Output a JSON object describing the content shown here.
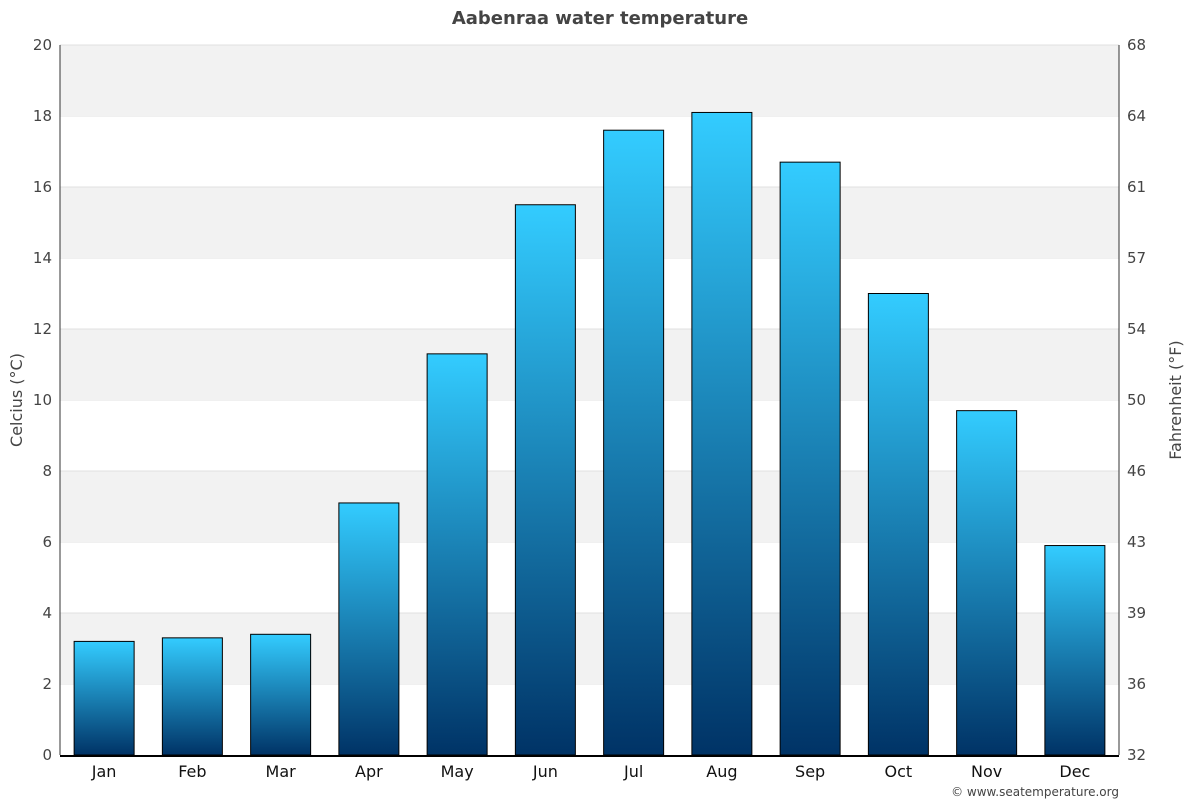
{
  "chart_data": {
    "type": "bar",
    "title": "Aabenraa water temperature",
    "ylabel": "Celcius (°C)",
    "ylabel_right": "Fahrenheit (°F)",
    "ylim": [
      0,
      20
    ],
    "yticks": [
      0,
      2,
      4,
      6,
      8,
      10,
      12,
      14,
      16,
      18,
      20
    ],
    "yticks_right": [
      "32",
      "36",
      "39",
      "43",
      "46",
      "50",
      "54",
      "57",
      "61",
      "64",
      "68"
    ],
    "categories": [
      "Jan",
      "Feb",
      "Mar",
      "Apr",
      "May",
      "Jun",
      "Jul",
      "Aug",
      "Sep",
      "Oct",
      "Nov",
      "Dec"
    ],
    "values": [
      3.2,
      3.3,
      3.4,
      7.1,
      11.3,
      15.5,
      17.6,
      18.1,
      16.7,
      13.0,
      9.7,
      5.9
    ],
    "grid": true,
    "colors": {
      "bar_top": "#33ccff",
      "bar_bottom": "#003366",
      "band": "#f2f2f2"
    }
  },
  "credit": "© www.seatemperature.org"
}
